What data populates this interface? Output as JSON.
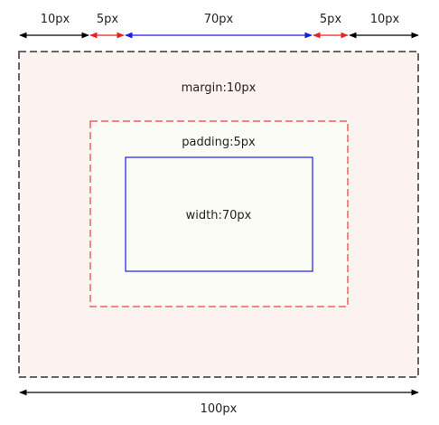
{
  "top_dimensions": [
    {
      "label": "10px",
      "color": "#000000"
    },
    {
      "label": "5px",
      "color": "#e8231f"
    },
    {
      "label": "70px",
      "color": "#1a1ae6"
    },
    {
      "label": "5px",
      "color": "#e8231f"
    },
    {
      "label": "10px",
      "color": "#000000"
    }
  ],
  "boxes": {
    "margin": {
      "label": "margin:10px",
      "border_color": "#666666",
      "fill": "#fcf3f0"
    },
    "padding": {
      "label": "padding:5px",
      "border_color": "#f06060",
      "fill": "#fcfcf7"
    },
    "content": {
      "label": "width:70px",
      "border_color": "#1a1ae6",
      "fill": "#fcfcf7"
    }
  },
  "bottom_dimension": {
    "label": "100px",
    "color": "#000000"
  }
}
